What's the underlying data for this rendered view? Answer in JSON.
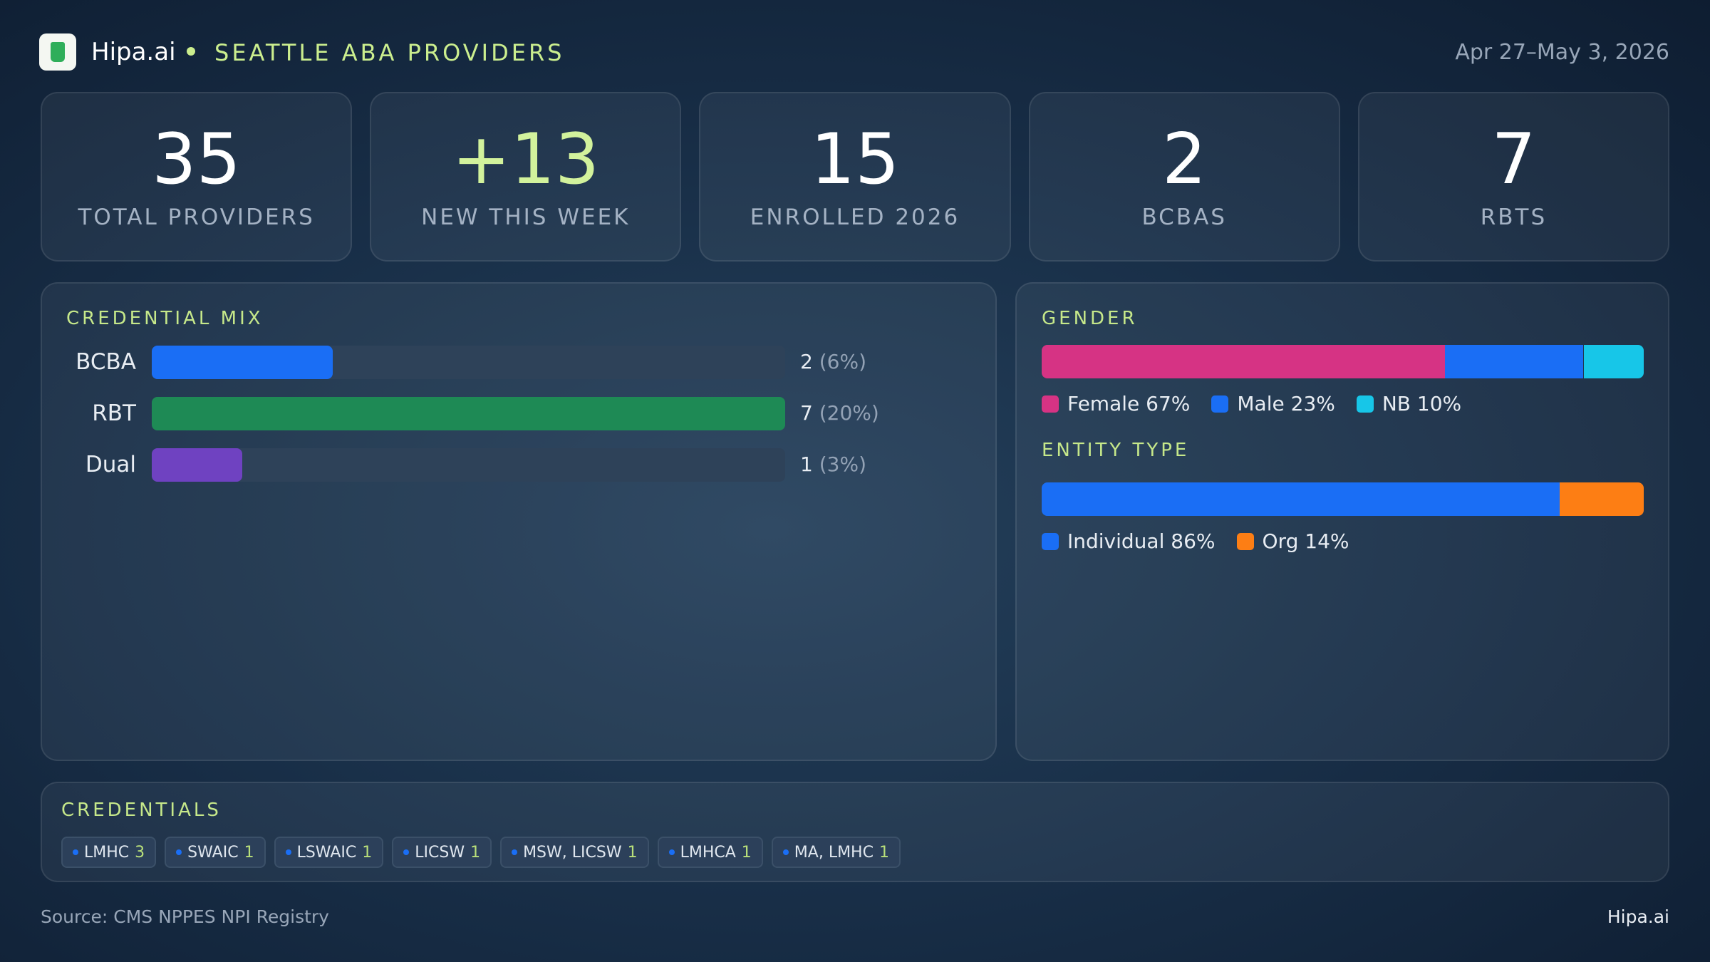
{
  "header": {
    "brand": "Hipa.ai",
    "title": "SEATTLE ABA PROVIDERS",
    "date": "Apr 27–May 3, 2026"
  },
  "kpis": [
    {
      "value": 35,
      "label": "TOTAL PROVIDERS"
    },
    {
      "value": "+13",
      "label": "NEW THIS WEEK"
    },
    {
      "value": 15,
      "label": "ENROLLED 2026"
    },
    {
      "value": 2,
      "label": "BCBAS"
    },
    {
      "value": 7,
      "label": "RBTS"
    }
  ],
  "chart_data": [
    {
      "type": "bar",
      "title": "CREDENTIAL MIX",
      "categories": [
        "BCBA",
        "RBT",
        "Dual"
      ],
      "values": [
        2,
        7,
        1
      ],
      "percents": [
        6,
        20,
        3
      ],
      "percent_labels": [
        "(6%)",
        "(20%)",
        "(3%)"
      ],
      "colors": [
        "#1a6ef5",
        "#1e8a55",
        "#6f42c1"
      ],
      "xlim": [
        0,
        7
      ]
    },
    {
      "type": "stacked_bar",
      "title": "GENDER",
      "series": [
        {
          "name": "Female",
          "color": "#d63384",
          "values": [
            67
          ],
          "value_labels": [
            "67%"
          ]
        },
        {
          "name": "Male",
          "color": "#1a6ef5",
          "values": [
            23
          ],
          "value_labels": [
            "23%"
          ]
        },
        {
          "name": "NB",
          "color": "#17c6e8",
          "values": [
            10
          ],
          "value_labels": [
            "10%"
          ]
        }
      ],
      "xlim": [
        0,
        100
      ]
    },
    {
      "type": "stacked_bar",
      "title": "ENTITY TYPE",
      "series": [
        {
          "name": "Individual",
          "color": "#1a6ef5",
          "values": [
            86
          ],
          "value_labels": [
            "86%"
          ]
        },
        {
          "name": "Org",
          "color": "#fd7e14",
          "values": [
            14
          ],
          "value_labels": [
            "14%"
          ]
        }
      ],
      "xlim": [
        0,
        100
      ]
    }
  ],
  "credentials": {
    "title": "CREDENTIALS",
    "items": [
      {
        "label": "LMHC",
        "count": 3
      },
      {
        "label": "SWAIC",
        "count": 1
      },
      {
        "label": "LSWAIC",
        "count": 1
      },
      {
        "label": "LICSW",
        "count": 1
      },
      {
        "label": "MSW, LICSW",
        "count": 1
      },
      {
        "label": "LMHCA",
        "count": 1
      },
      {
        "label": "MA, LMHC",
        "count": 1
      }
    ]
  },
  "footer": {
    "source": "Source: CMS NPPES NPI Registry",
    "brand": "Hipa.ai"
  }
}
